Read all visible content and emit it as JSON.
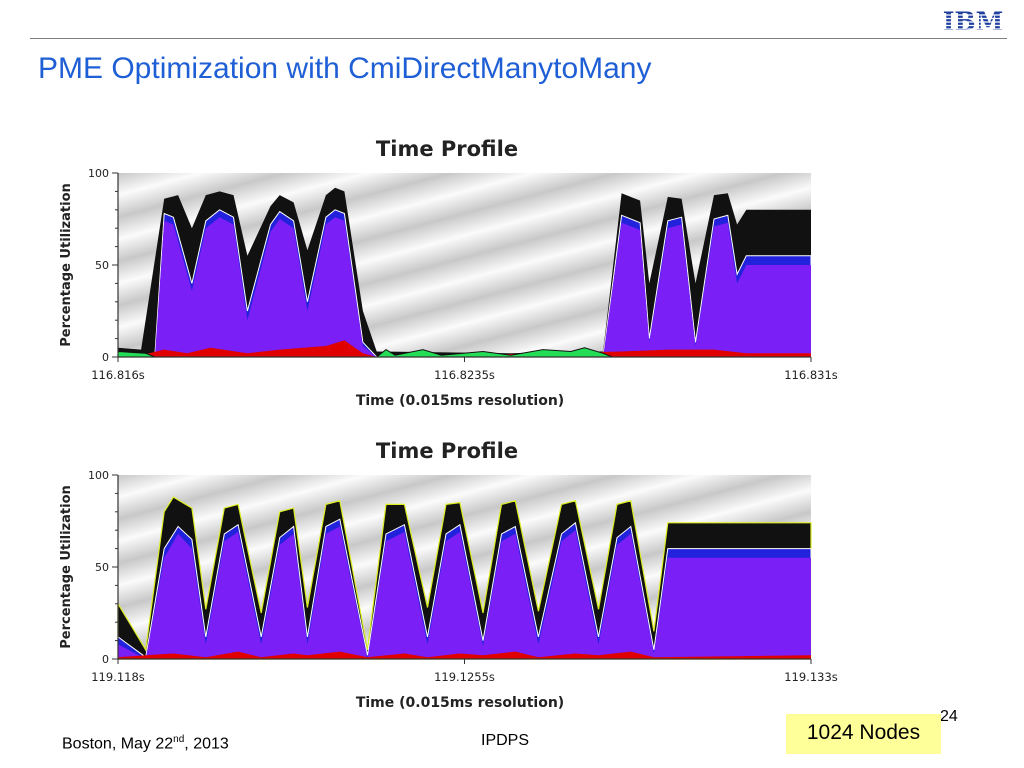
{
  "header": {
    "title": "PME Optimization with CmiDirectManytoMany",
    "logo_text": "IBM",
    "logo_color": "#1f3f9f"
  },
  "footer": {
    "location": "Boston, May 22",
    "date_sup": "nd",
    "year": ", 2013",
    "conference": "IPDPS",
    "page": "24",
    "badge": "1024 Nodes"
  },
  "colors": {
    "title": "#1f5fd6",
    "busy_black": "#111111",
    "blue_band": "#2222dd",
    "purple_fill": "#7a1ff5",
    "red_base": "#e00000",
    "green_idle": "#22dd55",
    "yellow_edge": "#ddee22",
    "badge_bg": "#ffff99"
  },
  "chart_data": [
    {
      "type": "area",
      "title": "Time Profile",
      "xlabel": "Time (0.015ms resolution)",
      "ylabel": "Percentage Utilization",
      "ylim": [
        0,
        100
      ],
      "yticks": [
        0,
        50,
        100
      ],
      "xticks": [
        "116.816s",
        "116.8235s",
        "116.831s"
      ],
      "xlim_s": [
        116.816,
        116.831
      ],
      "series": [
        {
          "values": [
            [
              116.816,
              5
            ],
            [
              116.8165,
              4
            ],
            [
              116.817,
              86
            ],
            [
              116.8173,
              88
            ],
            [
              116.8176,
              70
            ],
            [
              116.8179,
              88
            ],
            [
              116.8182,
              90
            ],
            [
              116.8185,
              88
            ],
            [
              116.8188,
              55
            ],
            [
              116.8193,
              82
            ],
            [
              116.8195,
              88
            ],
            [
              116.8198,
              84
            ],
            [
              116.8201,
              58
            ],
            [
              116.8205,
              88
            ],
            [
              116.8207,
              92
            ],
            [
              116.8209,
              90
            ],
            [
              116.8213,
              25
            ],
            [
              116.8216,
              3
            ],
            [
              116.8245,
              2
            ],
            [
              116.8258,
              3
            ],
            [
              116.8265,
              3
            ],
            [
              116.8269,
              89
            ],
            [
              116.8273,
              85
            ],
            [
              116.8275,
              40
            ],
            [
              116.8279,
              87
            ],
            [
              116.8282,
              86
            ],
            [
              116.8285,
              40
            ],
            [
              116.8289,
              88
            ],
            [
              116.8292,
              89
            ],
            [
              116.8294,
              72
            ],
            [
              116.8296,
              80
            ],
            [
              116.831,
              80
            ]
          ]
        },
        {
          "values": [
            [
              116.816,
              0
            ],
            [
              116.8168,
              2
            ],
            [
              116.817,
              78
            ],
            [
              116.8172,
              76
            ],
            [
              116.8176,
              40
            ],
            [
              116.8179,
              74
            ],
            [
              116.8182,
              80
            ],
            [
              116.8185,
              76
            ],
            [
              116.8188,
              25
            ],
            [
              116.8193,
              72
            ],
            [
              116.8195,
              79
            ],
            [
              116.8198,
              74
            ],
            [
              116.8201,
              30
            ],
            [
              116.8205,
              76
            ],
            [
              116.8207,
              80
            ],
            [
              116.8209,
              78
            ],
            [
              116.8213,
              8
            ],
            [
              116.8216,
              0
            ],
            [
              116.8265,
              0
            ],
            [
              116.8269,
              77
            ],
            [
              116.8273,
              73
            ],
            [
              116.8275,
              10
            ],
            [
              116.8279,
              74
            ],
            [
              116.8282,
              76
            ],
            [
              116.8285,
              8
            ],
            [
              116.8289,
              75
            ],
            [
              116.8292,
              77
            ],
            [
              116.8294,
              45
            ],
            [
              116.8296,
              55
            ],
            [
              116.831,
              55
            ]
          ]
        },
        {
          "values": [
            [
              116.816,
              0
            ],
            [
              116.8168,
              1
            ],
            [
              116.817,
              74
            ],
            [
              116.8172,
              72
            ],
            [
              116.8176,
              36
            ],
            [
              116.8179,
              70
            ],
            [
              116.8182,
              76
            ],
            [
              116.8185,
              72
            ],
            [
              116.8188,
              20
            ],
            [
              116.8193,
              68
            ],
            [
              116.8195,
              75
            ],
            [
              116.8198,
              70
            ],
            [
              116.8201,
              25
            ],
            [
              116.8205,
              72
            ],
            [
              116.8207,
              76
            ],
            [
              116.8209,
              74
            ],
            [
              116.8213,
              6
            ],
            [
              116.8216,
              0
            ],
            [
              116.8265,
              0
            ],
            [
              116.8269,
              73
            ],
            [
              116.8273,
              69
            ],
            [
              116.8275,
              8
            ],
            [
              116.8279,
              70
            ],
            [
              116.8282,
              72
            ],
            [
              116.8285,
              6
            ],
            [
              116.8289,
              71
            ],
            [
              116.8292,
              73
            ],
            [
              116.8294,
              40
            ],
            [
              116.8296,
              50
            ],
            [
              116.831,
              50
            ]
          ]
        },
        {
          "values": [
            [
              116.816,
              0
            ],
            [
              116.8165,
              1
            ],
            [
              116.817,
              4
            ],
            [
              116.8175,
              2
            ],
            [
              116.818,
              5
            ],
            [
              116.8188,
              2
            ],
            [
              116.8195,
              4
            ],
            [
              116.8205,
              6
            ],
            [
              116.8209,
              9
            ],
            [
              116.8213,
              2
            ],
            [
              116.8216,
              0
            ],
            [
              116.8269,
              3
            ],
            [
              116.8279,
              4
            ],
            [
              116.8289,
              4
            ],
            [
              116.8296,
              2
            ],
            [
              116.831,
              2
            ]
          ]
        },
        {
          "values": [
            [
              116.816,
              3
            ],
            [
              116.8166,
              2
            ],
            [
              116.8168,
              0
            ],
            [
              116.8216,
              0
            ],
            [
              116.8218,
              4
            ],
            [
              116.822,
              1
            ],
            [
              116.8226,
              4
            ],
            [
              116.823,
              1
            ],
            [
              116.8239,
              3
            ],
            [
              116.8245,
              1
            ],
            [
              116.8252,
              4
            ],
            [
              116.8258,
              3
            ],
            [
              116.8261,
              5
            ],
            [
              116.8265,
              2
            ],
            [
              116.8267,
              0
            ],
            [
              116.831,
              0
            ]
          ]
        }
      ]
    },
    {
      "type": "area",
      "title": "Time Profile",
      "xlabel": "Time (0.015ms resolution)",
      "ylabel": "Percentage Utilization",
      "ylim": [
        0,
        100
      ],
      "yticks": [
        0,
        50,
        100
      ],
      "xticks": [
        "119.118s",
        "119.1255s",
        "119.133s"
      ],
      "xlim_s": [
        119.118,
        119.133
      ],
      "series": [
        {
          "values": [
            [
              119.118,
              30
            ],
            [
              119.1186,
              5
            ],
            [
              119.119,
              80
            ],
            [
              119.1192,
              88
            ],
            [
              119.1196,
              82
            ],
            [
              119.1199,
              27
            ],
            [
              119.1203,
              82
            ],
            [
              119.1206,
              84
            ],
            [
              119.1211,
              25
            ],
            [
              119.1215,
              80
            ],
            [
              119.1218,
              82
            ],
            [
              119.1221,
              28
            ],
            [
              119.1225,
              84
            ],
            [
              119.1228,
              86
            ],
            [
              119.1234,
              5
            ],
            [
              119.1238,
              84
            ],
            [
              119.1242,
              84
            ],
            [
              119.1247,
              28
            ],
            [
              119.1251,
              84
            ],
            [
              119.1254,
              85
            ],
            [
              119.1259,
              25
            ],
            [
              119.1263,
              84
            ],
            [
              119.1266,
              86
            ],
            [
              119.1271,
              26
            ],
            [
              119.1276,
              84
            ],
            [
              119.1279,
              86
            ],
            [
              119.1284,
              27
            ],
            [
              119.1288,
              84
            ],
            [
              119.1291,
              86
            ],
            [
              119.1296,
              15
            ],
            [
              119.1299,
              74
            ],
            [
              119.133,
              74
            ]
          ]
        },
        {
          "values": [
            [
              119.118,
              12
            ],
            [
              119.1186,
              1
            ],
            [
              119.119,
              60
            ],
            [
              119.1193,
              72
            ],
            [
              119.1196,
              65
            ],
            [
              119.1199,
              12
            ],
            [
              119.1203,
              68
            ],
            [
              119.1206,
              73
            ],
            [
              119.1211,
              12
            ],
            [
              119.1215,
              66
            ],
            [
              119.1218,
              72
            ],
            [
              119.1221,
              12
            ],
            [
              119.1225,
              72
            ],
            [
              119.1228,
              76
            ],
            [
              119.1234,
              2
            ],
            [
              119.1238,
              68
            ],
            [
              119.1242,
              73
            ],
            [
              119.1247,
              12
            ],
            [
              119.1251,
              68
            ],
            [
              119.1254,
              73
            ],
            [
              119.1259,
              10
            ],
            [
              119.1263,
              68
            ],
            [
              119.1266,
              72
            ],
            [
              119.1271,
              12
            ],
            [
              119.1276,
              68
            ],
            [
              119.1279,
              74
            ],
            [
              119.1284,
              12
            ],
            [
              119.1288,
              66
            ],
            [
              119.1291,
              72
            ],
            [
              119.1296,
              5
            ],
            [
              119.1299,
              60
            ],
            [
              119.133,
              60
            ]
          ]
        },
        {
          "values": [
            [
              119.118,
              8
            ],
            [
              119.1186,
              0
            ],
            [
              119.119,
              55
            ],
            [
              119.1193,
              68
            ],
            [
              119.1196,
              60
            ],
            [
              119.1199,
              8
            ],
            [
              119.1203,
              64
            ],
            [
              119.1206,
              69
            ],
            [
              119.1211,
              8
            ],
            [
              119.1215,
              62
            ],
            [
              119.1218,
              68
            ],
            [
              119.1221,
              8
            ],
            [
              119.1225,
              68
            ],
            [
              119.1228,
              72
            ],
            [
              119.1234,
              0
            ],
            [
              119.1238,
              64
            ],
            [
              119.1242,
              69
            ],
            [
              119.1247,
              8
            ],
            [
              119.1251,
              64
            ],
            [
              119.1254,
              69
            ],
            [
              119.1259,
              7
            ],
            [
              119.1263,
              64
            ],
            [
              119.1266,
              68
            ],
            [
              119.1271,
              8
            ],
            [
              119.1276,
              64
            ],
            [
              119.1279,
              70
            ],
            [
              119.1284,
              8
            ],
            [
              119.1288,
              62
            ],
            [
              119.1291,
              68
            ],
            [
              119.1296,
              3
            ],
            [
              119.1299,
              55
            ],
            [
              119.133,
              55
            ]
          ]
        },
        {
          "values": [
            [
              119.118,
              1
            ],
            [
              119.1186,
              2
            ],
            [
              119.1192,
              3
            ],
            [
              119.1199,
              1
            ],
            [
              119.1206,
              4
            ],
            [
              119.1211,
              1
            ],
            [
              119.1218,
              3
            ],
            [
              119.1221,
              2
            ],
            [
              119.1228,
              4
            ],
            [
              119.1234,
              1
            ],
            [
              119.1242,
              3
            ],
            [
              119.1247,
              1
            ],
            [
              119.1254,
              3
            ],
            [
              119.1259,
              2
            ],
            [
              119.1266,
              4
            ],
            [
              119.1271,
              1
            ],
            [
              119.1279,
              3
            ],
            [
              119.1284,
              2
            ],
            [
              119.1291,
              4
            ],
            [
              119.1296,
              1
            ],
            [
              119.133,
              2
            ]
          ]
        }
      ]
    }
  ]
}
